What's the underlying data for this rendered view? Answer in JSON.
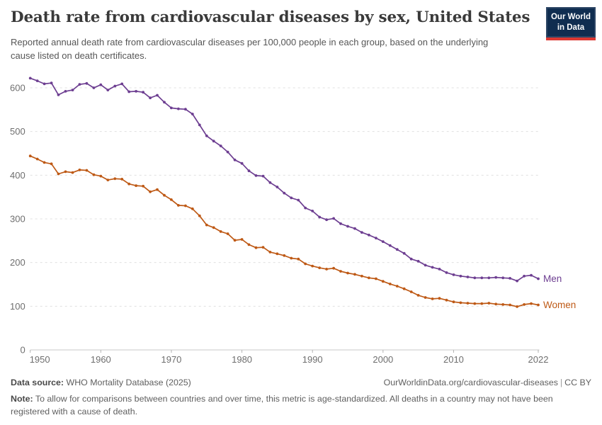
{
  "header": {
    "title": "Death rate from cardiovascular diseases by sex, United States",
    "subtitle": "Reported annual death rate from cardiovascular diseases per 100,000 people in each group, based on the underlying cause listed on death certificates.",
    "logo": {
      "line1": "Our World",
      "line2": "in Data"
    }
  },
  "chart_data": {
    "type": "line",
    "title": "Death rate from cardiovascular diseases by sex, United States",
    "xlabel": "",
    "ylabel": "",
    "ylim": [
      0,
      650
    ],
    "yticks": [
      0,
      100,
      200,
      300,
      400,
      500,
      600
    ],
    "xticks": [
      1950,
      1960,
      1970,
      1980,
      1990,
      2000,
      2010,
      2022
    ],
    "grid": "horizontal-dashed",
    "legend_position": "series-end-labels",
    "x": [
      1950,
      1951,
      1952,
      1953,
      1954,
      1955,
      1956,
      1957,
      1958,
      1959,
      1960,
      1961,
      1962,
      1963,
      1964,
      1965,
      1966,
      1967,
      1968,
      1969,
      1970,
      1971,
      1972,
      1973,
      1974,
      1975,
      1976,
      1977,
      1978,
      1979,
      1980,
      1981,
      1982,
      1983,
      1984,
      1985,
      1986,
      1987,
      1988,
      1989,
      1990,
      1991,
      1992,
      1993,
      1994,
      1995,
      1996,
      1997,
      1998,
      1999,
      2000,
      2001,
      2002,
      2003,
      2004,
      2005,
      2006,
      2007,
      2008,
      2009,
      2010,
      2011,
      2012,
      2013,
      2014,
      2015,
      2016,
      2017,
      2018,
      2019,
      2020,
      2021,
      2022
    ],
    "series": [
      {
        "name": "Men",
        "color": "#6d3e91",
        "values": [
          622,
          616,
          609,
          611,
          584,
          592,
          595,
          608,
          610,
          600,
          607,
          595,
          604,
          609,
          591,
          592,
          590,
          577,
          583,
          567,
          554,
          552,
          551,
          540,
          515,
          490,
          478,
          467,
          453,
          435,
          427,
          410,
          399,
          398,
          383,
          373,
          359,
          348,
          343,
          325,
          318,
          304,
          298,
          301,
          289,
          283,
          278,
          269,
          263,
          256,
          248,
          239,
          230,
          221,
          208,
          203,
          194,
          189,
          185,
          177,
          172,
          169,
          167,
          165,
          165,
          165,
          166,
          165,
          164,
          158,
          169,
          171,
          163
        ]
      },
      {
        "name": "Women",
        "color": "#be5915",
        "values": [
          444,
          437,
          429,
          426,
          403,
          408,
          406,
          412,
          411,
          401,
          398,
          389,
          392,
          391,
          380,
          376,
          375,
          362,
          367,
          354,
          344,
          331,
          330,
          323,
          307,
          286,
          280,
          271,
          266,
          251,
          253,
          241,
          234,
          235,
          224,
          220,
          216,
          210,
          208,
          197,
          192,
          188,
          185,
          187,
          180,
          176,
          173,
          169,
          165,
          163,
          157,
          151,
          146,
          140,
          133,
          125,
          120,
          117,
          118,
          114,
          110,
          108,
          107,
          106,
          106,
          107,
          105,
          104,
          103,
          99,
          104,
          106,
          103
        ]
      }
    ]
  },
  "style": {
    "grid_color": "#e0e0e0",
    "axis_color": "#c8c8c8",
    "tick_color": "#b3b3b3",
    "tick_label_color": "#6e6e6e"
  },
  "footer": {
    "source_label": "Data source:",
    "source_value": "WHO Mortality Database (2025)",
    "url": "OurWorldinData.org/cardiovascular-diseases",
    "separator": "|",
    "license": "CC BY",
    "note_label": "Note:",
    "note_value": "To allow for comparisons between countries and over time, this metric is age-standardized. All deaths in a country may not have been registered with a cause of death."
  }
}
